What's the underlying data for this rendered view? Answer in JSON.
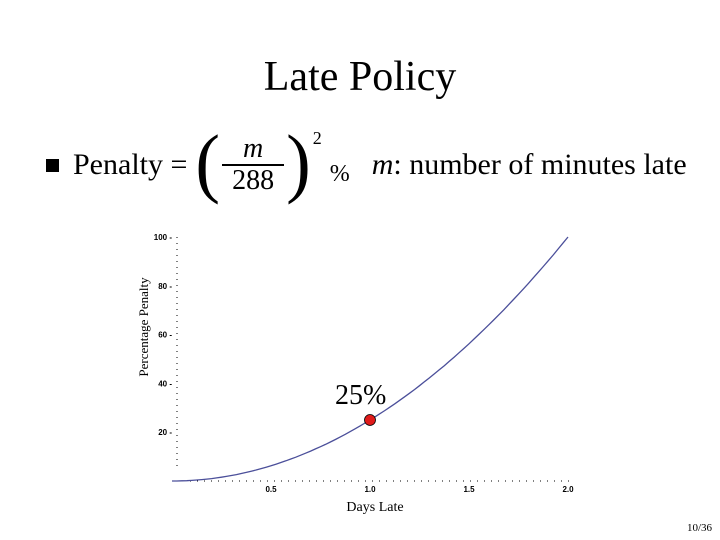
{
  "slide": {
    "title": "Late Policy",
    "bullet": {
      "lead": "Penalty =",
      "formula": {
        "numerator": "m",
        "denominator": "288",
        "exponent": "2",
        "unit": "%"
      },
      "definition_var": "m",
      "definition_text": ": number of minutes late"
    },
    "page_number": "10/36"
  },
  "chart_data": {
    "type": "line",
    "xlabel": "Days Late",
    "ylabel": "Percentage Penalty",
    "xlim": [
      0,
      2.0
    ],
    "ylim": [
      0,
      100
    ],
    "x_ticks": [
      "0.5",
      "1.0",
      "1.5",
      "2.0"
    ],
    "y_ticks": [
      "20",
      "40",
      "60",
      "80",
      "100"
    ],
    "series": [
      {
        "x": [
          0,
          0.25,
          0.5,
          0.75,
          1.0,
          1.25,
          1.5,
          1.75,
          2.0
        ],
        "y": [
          0,
          1.5625,
          6.25,
          14.0625,
          25,
          39.0625,
          56.25,
          76.5625,
          100
        ]
      }
    ],
    "highlight_point": {
      "x": 1.0,
      "y": 25,
      "label": "25%"
    },
    "grid": false,
    "colors": {
      "line": "#4b4f9a",
      "point": "#e01b1b"
    }
  }
}
